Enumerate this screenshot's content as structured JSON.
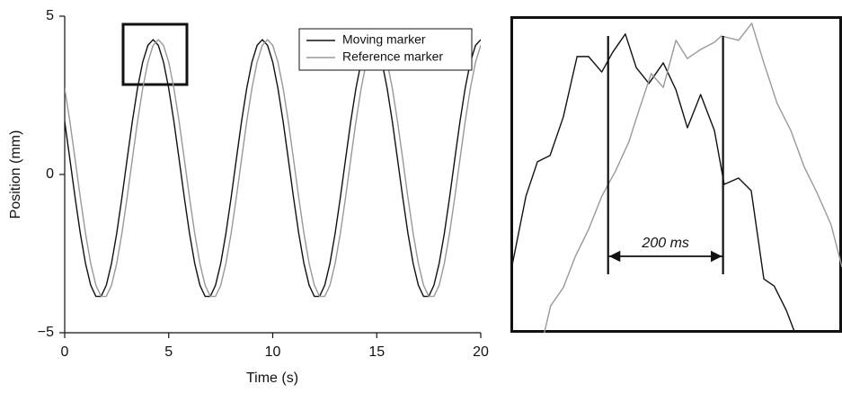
{
  "chart_data": [
    {
      "type": "line",
      "xlabel": "Time (s)",
      "ylabel": "Position (mm)",
      "x": [
        0,
        0.25,
        0.5,
        0.75,
        1,
        1.25,
        1.5,
        1.75,
        2,
        2.25,
        2.5,
        2.75,
        3,
        3.25,
        3.5,
        3.75,
        4,
        4.25,
        4.5,
        4.75,
        5,
        5.25,
        5.5,
        5.75,
        6,
        6.25,
        6.5,
        6.75,
        7,
        7.25,
        7.5,
        7.75,
        8,
        8.25,
        8.5,
        8.75,
        9,
        9.25,
        9.5,
        9.75,
        10,
        10.25,
        10.5,
        10.75,
        11,
        11.25,
        11.5,
        11.75,
        12,
        12.25,
        12.5,
        12.75,
        13,
        13.25,
        13.5,
        13.75,
        14,
        14.25,
        14.5,
        14.75,
        15,
        15.25,
        15.5,
        15.75,
        16,
        16.25,
        16.5,
        16.75,
        17,
        17.25,
        17.5,
        17.75,
        18,
        18.25,
        18.5,
        18.75,
        19,
        19.25,
        19.5,
        19.75,
        20
      ],
      "series": [
        {
          "name": "Moving marker",
          "color": "#111111",
          "values": [
            1.67,
            0.48,
            -0.73,
            -1.86,
            -2.81,
            -3.5,
            -3.85,
            -3.85,
            -3.5,
            -2.81,
            -1.86,
            -0.73,
            0.48,
            1.67,
            2.72,
            3.55,
            4.08,
            4.26,
            4.08,
            3.55,
            2.72,
            1.67,
            0.48,
            -0.73,
            -1.86,
            -2.81,
            -3.5,
            -3.85,
            -3.85,
            -3.5,
            -2.81,
            -1.86,
            -0.73,
            0.48,
            1.67,
            2.72,
            3.55,
            4.08,
            4.26,
            4.08,
            3.55,
            2.72,
            1.67,
            0.48,
            -0.73,
            -1.86,
            -2.81,
            -3.5,
            -3.85,
            -3.85,
            -3.5,
            -2.81,
            -1.86,
            -0.73,
            0.48,
            1.67,
            2.72,
            3.55,
            4.08,
            4.26,
            4.08,
            3.55,
            2.72,
            1.67,
            0.48,
            -0.73,
            -1.86,
            -2.81,
            -3.5,
            -3.85,
            -3.85,
            -3.5,
            -2.81,
            -1.86,
            -0.73,
            0.48,
            1.67,
            2.72,
            3.55,
            4.08,
            4.26
          ]
        },
        {
          "name": "Reference marker",
          "color": "#999999",
          "values": [
            2.72,
            1.67,
            0.48,
            -0.73,
            -1.86,
            -2.81,
            -3.5,
            -3.85,
            -3.85,
            -3.5,
            -2.81,
            -1.86,
            -0.73,
            0.48,
            1.67,
            2.72,
            3.55,
            4.08,
            4.26,
            4.08,
            3.55,
            2.72,
            1.67,
            0.48,
            -0.73,
            -1.86,
            -2.81,
            -3.5,
            -3.85,
            -3.85,
            -3.5,
            -2.81,
            -1.86,
            -0.73,
            0.48,
            1.67,
            2.72,
            3.55,
            4.08,
            4.26,
            4.08,
            3.55,
            2.72,
            1.67,
            0.48,
            -0.73,
            -1.86,
            -2.81,
            -3.5,
            -3.85,
            -3.85,
            -3.5,
            -2.81,
            -1.86,
            -0.73,
            0.48,
            1.67,
            2.72,
            3.55,
            4.08,
            4.26,
            4.08,
            3.55,
            2.72,
            1.67,
            0.48,
            -0.73,
            -1.86,
            -2.81,
            -3.5,
            -3.85,
            -3.85,
            -3.5,
            -2.81,
            -1.86,
            -0.73,
            0.48,
            1.67,
            2.72,
            3.55,
            4.08
          ]
        }
      ],
      "xlim": [
        0,
        20
      ],
      "xticks": [
        0,
        5,
        10,
        15,
        20
      ],
      "ylim": [
        -5,
        5
      ],
      "yticks": [
        5,
        0,
        {
          "value": -5,
          "label": "−5"
        }
      ],
      "legend": "upper right"
    },
    {
      "type": "line",
      "series": [
        {
          "color": "#111111",
          "x": [
            3.803,
            3.827,
            3.847,
            3.869,
            3.892,
            3.916,
            3.936,
            3.959,
            3.978,
            4.0,
            4.019,
            4.041,
            4.066,
            4.088,
            4.108,
            4.131,
            4.155,
            4.172,
            4.197,
            4.219,
            4.241,
            4.259,
            4.28,
            4.295
          ],
          "values": [
            3.77,
            3.945,
            4.032,
            4.048,
            4.145,
            4.298,
            4.298,
            4.259,
            4.309,
            4.355,
            4.27,
            4.23,
            4.282,
            4.214,
            4.118,
            4.202,
            4.111,
            3.975,
            3.991,
            3.959,
            3.736,
            3.718,
            3.657,
            3.6
          ]
        },
        {
          "color": "#999999",
          "x": [
            3.859,
            3.87,
            3.892,
            3.913,
            3.936,
            3.959,
            3.983,
            4.006,
            4.025,
            4.045,
            4.066,
            4.088,
            4.108,
            4.131,
            4.155,
            4.167,
            4.197,
            4.22,
            4.241,
            4.264,
            4.288,
            4.311,
            4.334,
            4.358,
            4.377
          ],
          "values": [
            3.6,
            3.668,
            3.714,
            3.793,
            3.861,
            3.945,
            4.009,
            4.082,
            4.168,
            4.255,
            4.22,
            4.339,
            4.293,
            4.316,
            4.334,
            4.35,
            4.339,
            4.382,
            4.282,
            4.18,
            4.111,
            4.02,
            3.952,
            3.873,
            3.766
          ]
        }
      ],
      "xlim": [
        3.8,
        4.377
      ],
      "ylim": [
        3.6,
        4.4
      ],
      "markers": [
        3.97,
        4.17
      ],
      "annotation": "200 ms"
    }
  ]
}
